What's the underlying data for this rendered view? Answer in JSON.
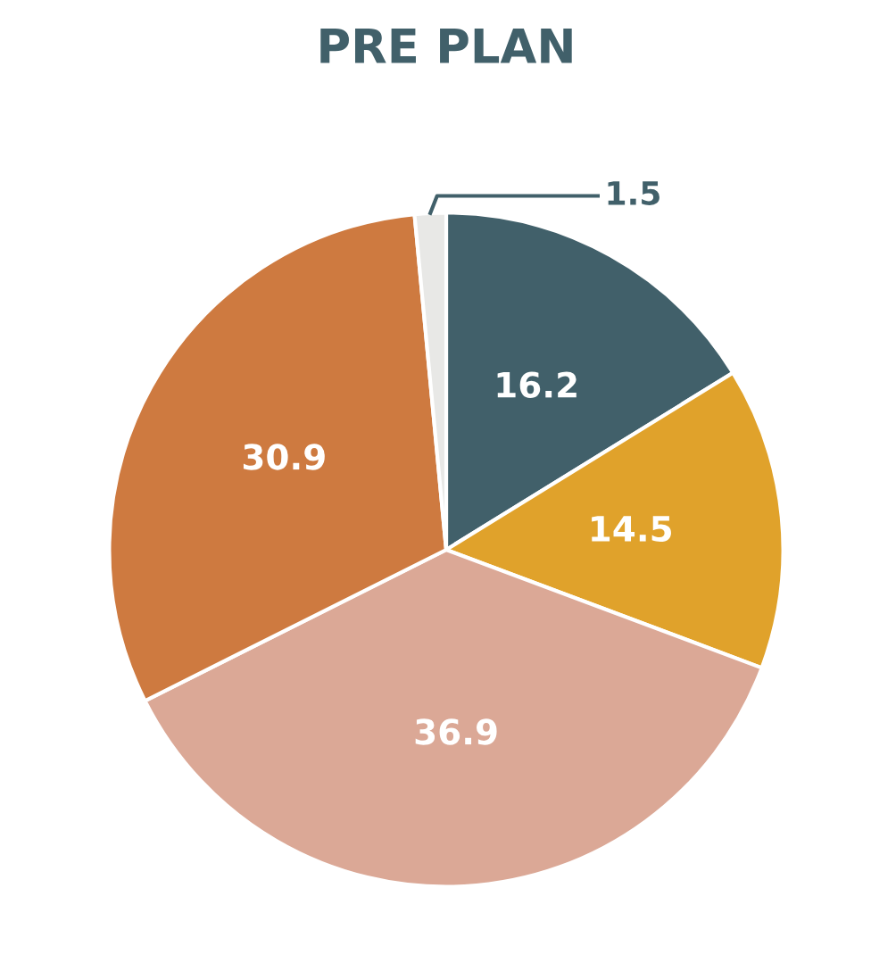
{
  "chart_data": {
    "type": "pie",
    "title": "PRE PLAN",
    "categories": [
      null,
      null,
      null,
      null,
      null
    ],
    "values": [
      16.2,
      14.5,
      36.9,
      30.9,
      1.5
    ],
    "colors": [
      "#41606a",
      "#e0a22b",
      "#dba896",
      "#ce7a40",
      "#e8e8e6"
    ],
    "data_labels": true
  }
}
